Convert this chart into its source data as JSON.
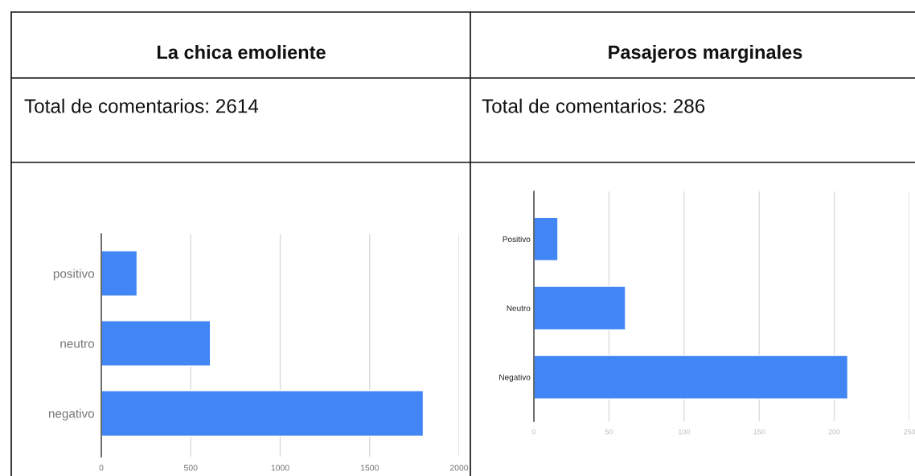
{
  "chart_data": [
    {
      "type": "bar",
      "orientation": "horizontal",
      "title": "La chica emoliente",
      "subtitle": "Total de comentarios: 2614",
      "categories": [
        "positivo",
        "neutro",
        "negativo"
      ],
      "values": [
        200,
        610,
        1800
      ],
      "color": "#4285f4",
      "xlim": [
        0,
        2000
      ],
      "xticks": [
        0,
        500,
        1000,
        1500,
        2000
      ],
      "grid": "x"
    },
    {
      "type": "bar",
      "orientation": "horizontal",
      "title": "Pasajeros marginales",
      "subtitle": "Total de comentarios: 286",
      "categories": [
        "Positivo",
        "Neutro",
        "Negativo"
      ],
      "values": [
        16,
        61,
        209
      ],
      "color": "#4285f4",
      "xlim": [
        0,
        250
      ],
      "xticks": [
        0,
        50,
        100,
        150,
        200,
        250
      ],
      "grid": "x"
    }
  ]
}
